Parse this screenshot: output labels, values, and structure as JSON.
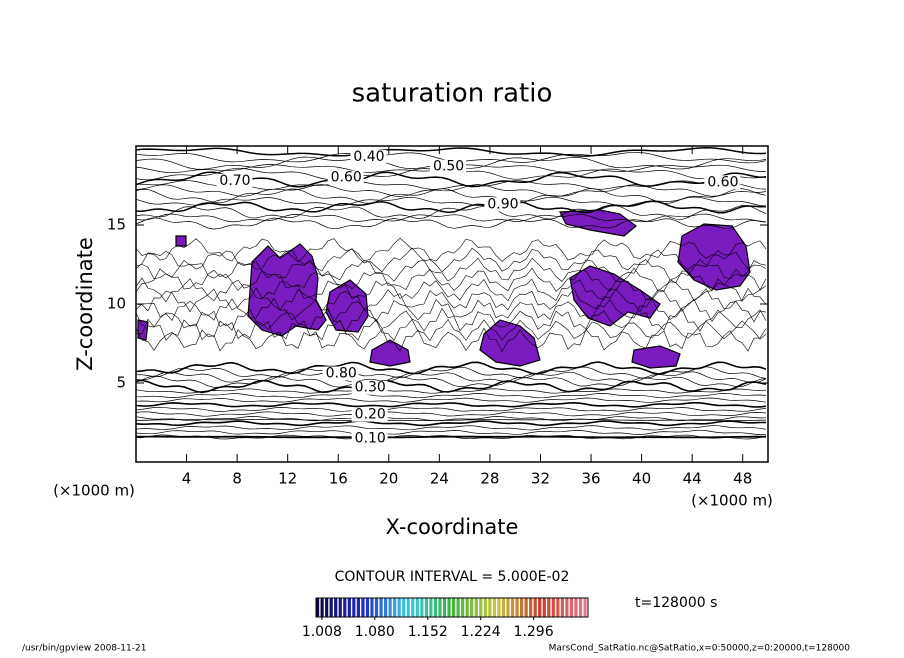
{
  "chart_data": {
    "type": "contour",
    "title": "saturation ratio",
    "x_label": "X-coordinate",
    "y_label": "Z-coordinate",
    "x_unit": "(×1000 m)",
    "y_unit": "(×1000 m)",
    "xlim": [
      0,
      50
    ],
    "ylim": [
      0,
      20
    ],
    "xticks": [
      4,
      8,
      12,
      16,
      20,
      24,
      28,
      32,
      36,
      40,
      44,
      48
    ],
    "yticks": [
      5,
      10,
      15
    ],
    "fill_color": "#7a1bc0",
    "contour_labels": [
      {
        "value": 0.4,
        "label": "0.40",
        "x": 17.2,
        "z": 19.3
      },
      {
        "value": 0.5,
        "label": "0.50",
        "x": 23.5,
        "z": 18.7
      },
      {
        "value": 0.7,
        "label": "0.70",
        "x": 6.6,
        "z": 17.8
      },
      {
        "value": 0.6,
        "label": "0.60",
        "x": 15.4,
        "z": 18.0
      },
      {
        "value": 0.6,
        "label": "0.60",
        "x": 45.2,
        "z": 17.7
      },
      {
        "value": 0.9,
        "label": "0.90",
        "x": 27.8,
        "z": 16.3
      },
      {
        "value": 0.8,
        "label": "0.80",
        "x": 15.0,
        "z": 5.6
      },
      {
        "value": 0.3,
        "label": "0.30",
        "x": 17.3,
        "z": 4.7
      },
      {
        "value": 0.2,
        "label": "0.20",
        "x": 17.3,
        "z": 3.0
      },
      {
        "value": 0.1,
        "label": "0.10",
        "x": 17.3,
        "z": 1.5
      }
    ],
    "contour_interval_text": "CONTOUR INTERVAL = 5.000E-02",
    "colorbar_lim": [
      1.0,
      1.37
    ],
    "colorbar_ticks": [
      {
        "value": 1.008,
        "label": "1.008"
      },
      {
        "value": 1.08,
        "label": "1.080"
      },
      {
        "value": 1.152,
        "label": "1.152"
      },
      {
        "value": 1.224,
        "label": "1.224"
      },
      {
        "value": 1.296,
        "label": "1.296"
      }
    ],
    "time_label": "t=128000 s",
    "footer_left": "/usr/bin/gpview   2008-11-21",
    "footer_right": "MarsCond_SatRatio.nc@SatRatio,x=0:50000,z=0:20000,t=128000"
  }
}
